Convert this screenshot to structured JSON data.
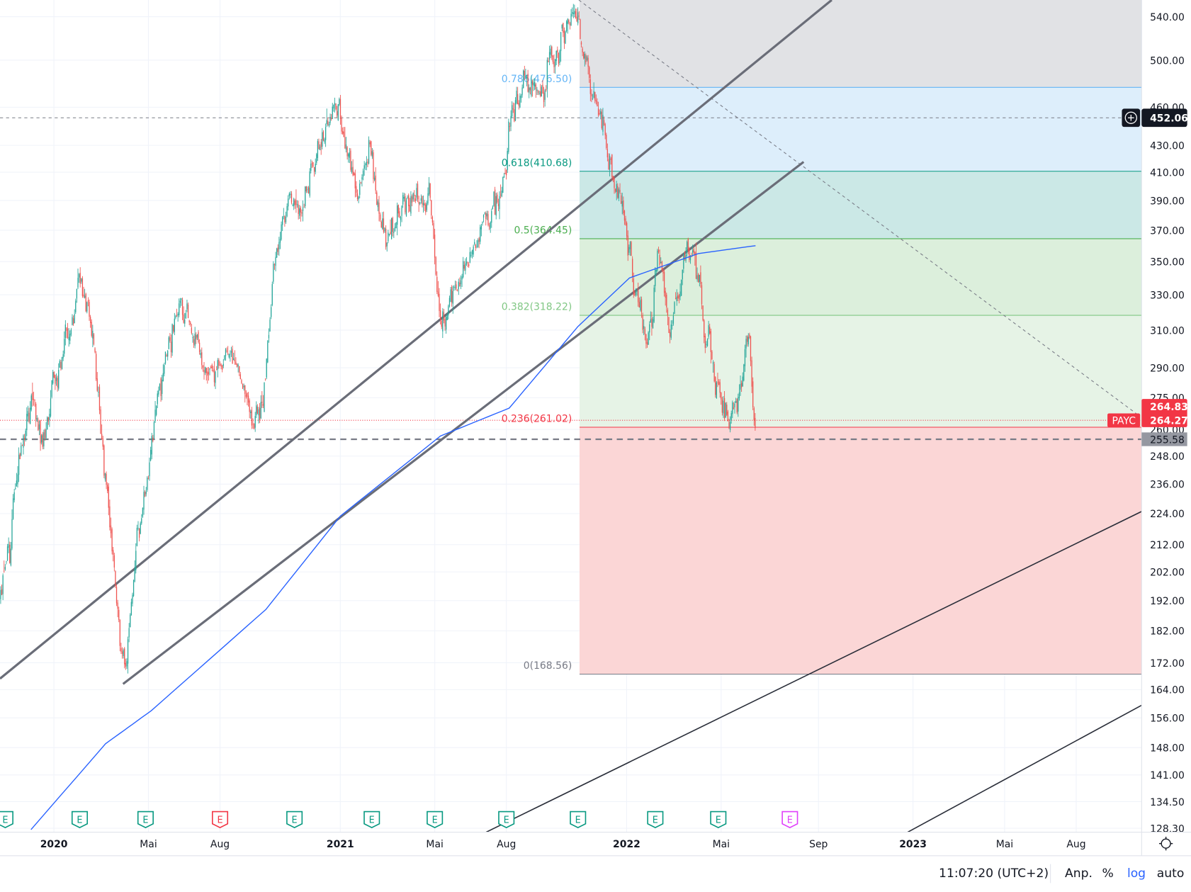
{
  "symbol": "PAYC",
  "colors": {
    "up": "#26a69a",
    "down": "#ef5350",
    "ma": "#2962ff",
    "trendline": "#6a6d78",
    "last_price": "#f23645",
    "crosshair_badge": "#131722",
    "log_active": "#2962ff"
  },
  "price_axis": {
    "scale": "log",
    "ticks": [
      "540.00",
      "500.00",
      "460.00",
      "430.00",
      "410.00",
      "390.00",
      "370.00",
      "350.00",
      "330.00",
      "310.00",
      "290.00",
      "275.00",
      "260.00",
      "248.00",
      "236.00",
      "224.00",
      "212.00",
      "202.00",
      "192.00",
      "182.00",
      "172.00",
      "164.00",
      "156.00",
      "148.00",
      "141.00",
      "134.50",
      "128.30"
    ]
  },
  "time_axis": {
    "labels": [
      {
        "text": "2020",
        "t": 2020.0,
        "bold": true
      },
      {
        "text": "Mai",
        "t": 2020.33,
        "bold": false
      },
      {
        "text": "Aug",
        "t": 2020.58,
        "bold": false
      },
      {
        "text": "2021",
        "t": 2021.0,
        "bold": true
      },
      {
        "text": "Mai",
        "t": 2021.33,
        "bold": false
      },
      {
        "text": "Aug",
        "t": 2021.58,
        "bold": false
      },
      {
        "text": "2022",
        "t": 2022.0,
        "bold": true
      },
      {
        "text": "Mai",
        "t": 2022.33,
        "bold": false
      },
      {
        "text": "Sep",
        "t": 2022.67,
        "bold": false
      },
      {
        "text": "2023",
        "t": 2023.0,
        "bold": true
      },
      {
        "text": "Mai",
        "t": 2023.32,
        "bold": false
      },
      {
        "text": "Aug",
        "t": 2023.57,
        "bold": false
      }
    ]
  },
  "badges": {
    "crosshair_price": "452.06",
    "high_price": "264.83",
    "last_price": "264.27",
    "symbol_label": "PAYC",
    "dashed_level": "255.58"
  },
  "fib_levels": [
    {
      "label": "0.786(476.50)",
      "price": 476.5,
      "color": "#64b5f6",
      "fill": "#ddeefb"
    },
    {
      "label": "0.618(410.68)",
      "price": 410.68,
      "color": "#089981",
      "fill": "#cbe8e6"
    },
    {
      "label": "0.5(364.45)",
      "price": 364.45,
      "color": "#4caf50",
      "fill": "#dcefdc"
    },
    {
      "label": "0.382(318.22)",
      "price": 318.22,
      "color": "#81c784",
      "fill": "#e6f3e6"
    },
    {
      "label": "0.236(261.02)",
      "price": 261.02,
      "color": "#f23645",
      "fill": "#fbd6d6"
    },
    {
      "label": "0(168.56)",
      "price": 168.56,
      "color": "#787b86",
      "fill": ""
    }
  ],
  "fib_top_fill": "#e1e2e5",
  "earnings": [
    {
      "t": 2019.83,
      "label": "E",
      "color": "#089981"
    },
    {
      "t": 2020.09,
      "label": "E",
      "color": "#089981"
    },
    {
      "t": 2020.32,
      "label": "E",
      "color": "#089981"
    },
    {
      "t": 2020.58,
      "label": "E",
      "color": "#f23645"
    },
    {
      "t": 2020.84,
      "label": "E",
      "color": "#089981"
    },
    {
      "t": 2021.11,
      "label": "E",
      "color": "#089981"
    },
    {
      "t": 2021.33,
      "label": "E",
      "color": "#089981"
    },
    {
      "t": 2021.58,
      "label": "E",
      "color": "#089981"
    },
    {
      "t": 2021.83,
      "label": "E",
      "color": "#089981"
    },
    {
      "t": 2022.1,
      "label": "E",
      "color": "#089981"
    },
    {
      "t": 2022.32,
      "label": "E",
      "color": "#089981"
    },
    {
      "t": 2022.57,
      "label": "E",
      "color": "#e040fb"
    }
  ],
  "status_bar": {
    "clock": "11:07:20 (UTC+2)",
    "adjust": "Anp.",
    "percent": "%",
    "log": "log",
    "auto": "auto"
  },
  "chart_data": {
    "type": "candlestick",
    "price_path": [
      [
        2019.81,
        192
      ],
      [
        2019.84,
        211
      ],
      [
        2019.89,
        249
      ],
      [
        2019.92,
        275
      ],
      [
        2019.96,
        258
      ],
      [
        2020.01,
        288
      ],
      [
        2020.09,
        335
      ],
      [
        2020.14,
        295
      ],
      [
        2020.18,
        242
      ],
      [
        2020.22,
        190
      ],
      [
        2020.25,
        168
      ],
      [
        2020.29,
        217
      ],
      [
        2020.34,
        254
      ],
      [
        2020.38,
        288
      ],
      [
        2020.44,
        329
      ],
      [
        2020.49,
        308
      ],
      [
        2020.53,
        284
      ],
      [
        2020.61,
        304
      ],
      [
        2020.69,
        264
      ],
      [
        2020.73,
        275
      ],
      [
        2020.77,
        356
      ],
      [
        2020.82,
        390
      ],
      [
        2020.87,
        380
      ],
      [
        2020.93,
        435
      ],
      [
        2020.98,
        465
      ],
      [
        2021.02,
        431
      ],
      [
        2021.06,
        386
      ],
      [
        2021.1,
        435
      ],
      [
        2021.15,
        366
      ],
      [
        2021.22,
        386
      ],
      [
        2021.31,
        397
      ],
      [
        2021.35,
        308
      ],
      [
        2021.4,
        329
      ],
      [
        2021.46,
        352
      ],
      [
        2021.51,
        386
      ],
      [
        2021.58,
        402
      ],
      [
        2021.59,
        455
      ],
      [
        2021.64,
        480
      ],
      [
        2021.69,
        474
      ],
      [
        2021.75,
        504
      ],
      [
        2021.83,
        552
      ],
      [
        2021.85,
        500
      ],
      [
        2021.91,
        448
      ],
      [
        2021.96,
        397
      ],
      [
        2022.01,
        356
      ],
      [
        2022.07,
        298
      ],
      [
        2022.11,
        359
      ],
      [
        2022.15,
        310
      ],
      [
        2022.19,
        331
      ],
      [
        2022.21,
        356
      ],
      [
        2022.24,
        352
      ],
      [
        2022.28,
        308
      ],
      [
        2022.32,
        275
      ],
      [
        2022.35,
        261
      ],
      [
        2022.4,
        279
      ],
      [
        2022.42,
        310
      ],
      [
        2022.45,
        259
      ]
    ],
    "moving_average": [
      [
        2019.92,
        128
      ],
      [
        2020.18,
        149
      ],
      [
        2020.34,
        158
      ],
      [
        2020.74,
        189
      ],
      [
        2021.0,
        223
      ],
      [
        2021.35,
        257
      ],
      [
        2021.59,
        270
      ],
      [
        2021.83,
        312
      ],
      [
        2022.01,
        340
      ],
      [
        2022.25,
        355
      ],
      [
        2022.45,
        360
      ]
    ]
  }
}
